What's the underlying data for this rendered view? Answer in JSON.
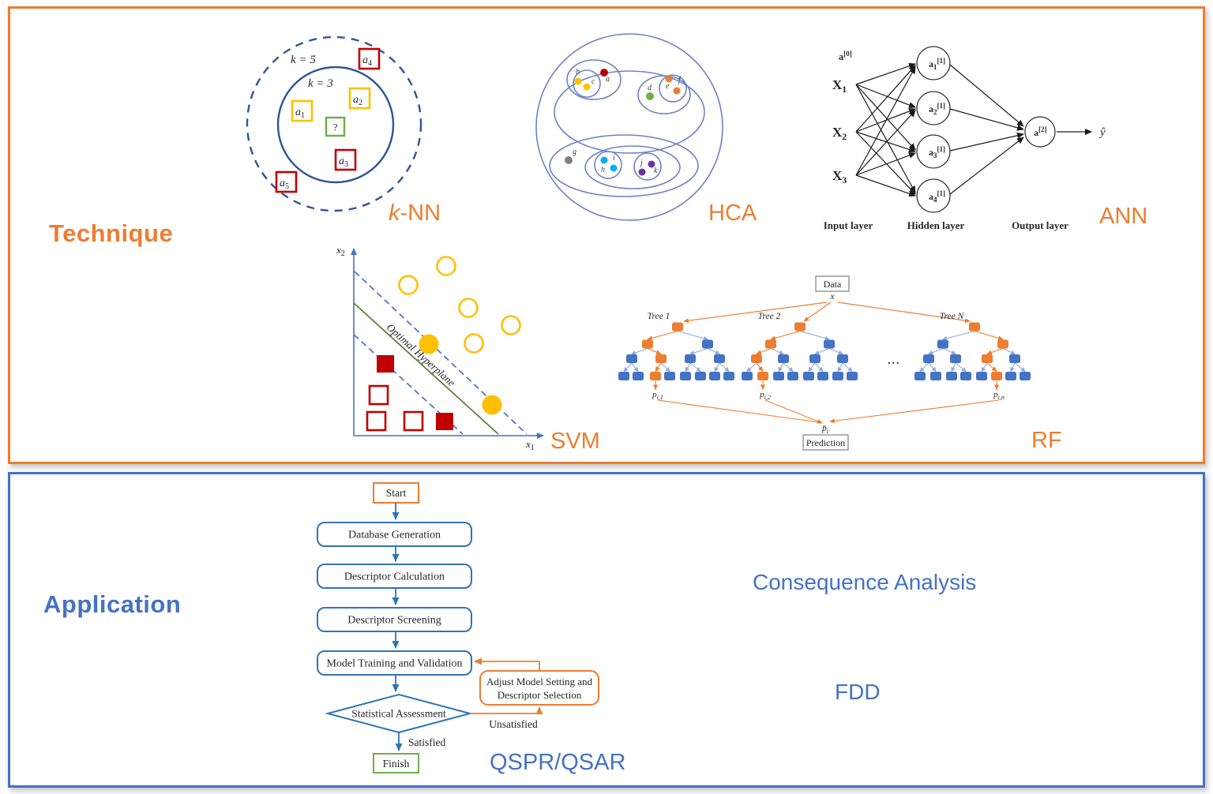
{
  "palette": {
    "orange": "#ED7D31",
    "panel_blue": "#4472C4",
    "flow_blue": "#2E75B6",
    "knn_circle_blue": "#2F5597",
    "hca_blue": "#6B83C4",
    "tree_edge_blue": "#8FAADC",
    "yellow": "#FFC000",
    "red": "#C00000",
    "green": "#70AD47",
    "svm_line_green": "#538135",
    "gray": "#7F7F7F",
    "light_blue": "#00B0F0",
    "purple": "#7030A0"
  },
  "technique": {
    "title": "Technique",
    "knn": {
      "label_k": "k",
      "label_suffix": "-NN",
      "k5": "k = 5",
      "k3": "k = 3",
      "sq_a1": {
        "base": "a",
        "sub": "1"
      },
      "sq_a2": {
        "base": "a",
        "sub": "2"
      },
      "sq_a3": {
        "base": "a",
        "sub": "3"
      },
      "sq_a4": {
        "base": "a",
        "sub": "4"
      },
      "sq_a5": {
        "base": "a",
        "sub": "5"
      },
      "query": "?"
    },
    "hca": {
      "label": "HCA",
      "a": "a",
      "b": "b",
      "c": "c",
      "d": "d",
      "e": "e",
      "f": "f",
      "g": "g",
      "h": "h",
      "i": "i",
      "j": "j",
      "k": "k"
    },
    "ann": {
      "label": "ANN",
      "a0": {
        "base": "a",
        "sup": "[0]"
      },
      "x1": {
        "base": "X",
        "sub": "1"
      },
      "x2": {
        "base": "X",
        "sub": "2"
      },
      "x3": {
        "base": "X",
        "sub": "3"
      },
      "h1": {
        "base": "a",
        "sub": "1",
        "sup": "[1]"
      },
      "h2": {
        "base": "a",
        "sub": "2",
        "sup": "[1]"
      },
      "h3": {
        "base": "a",
        "sub": "3",
        "sup": "[1]"
      },
      "h4": {
        "base": "a",
        "sub": "4",
        "sup": "[1]"
      },
      "out": {
        "base": "a",
        "sup": "[2]"
      },
      "yhat": "ŷ",
      "input_layer": "Input layer",
      "hidden_layer": "Hidden layer",
      "output_layer": "Output layer"
    },
    "svm": {
      "label": "SVM",
      "x1": {
        "base": "x",
        "sub": "1"
      },
      "x2": {
        "base": "x",
        "sub": "2"
      },
      "hyperplane": "Optimal Hyperplane"
    },
    "rf": {
      "label": "RF",
      "data_box": "Data",
      "x": "x",
      "tree1": "Tree 1",
      "tree2": "Tree 2",
      "treeN": "Tree N",
      "dots": "...",
      "p1": {
        "base": "p",
        "sub": "i,1"
      },
      "p2": {
        "base": "p",
        "sub": "i,2"
      },
      "pn": {
        "base": "p",
        "sub": "i,n"
      },
      "pbar": {
        "base": "p̄",
        "sub": "i"
      },
      "prediction_box": "Prediction",
      "tree_patterns": [
        {
          "root": "O",
          "l2": [
            "O",
            "B"
          ],
          "l3": [
            "B",
            "O",
            "B",
            "B"
          ],
          "leaves": [
            "B",
            "B",
            "O",
            "B",
            "B",
            "B",
            "B",
            "B"
          ],
          "p_leaf": 2
        },
        {
          "root": "O",
          "l2": [
            "O",
            "B"
          ],
          "l3": [
            "O",
            "B",
            "B",
            "B"
          ],
          "leaves": [
            "B",
            "O",
            "B",
            "B",
            "B",
            "B",
            "B",
            "B"
          ],
          "p_leaf": 1
        },
        {
          "root": "O",
          "l2": [
            "B",
            "O"
          ],
          "l3": [
            "B",
            "B",
            "O",
            "B"
          ],
          "leaves": [
            "B",
            "B",
            "B",
            "B",
            "B",
            "O",
            "B",
            "B"
          ],
          "p_leaf": 5
        }
      ]
    }
  },
  "application": {
    "title": "Application",
    "flowchart": {
      "start": "Start",
      "step1": "Database Generation",
      "step2": "Descriptor Calculation",
      "step3": "Descriptor Screening",
      "step4": "Model Training and Validation",
      "decision": "Statistical Assessment",
      "adjust1": "Adjust Model Setting and",
      "adjust2": "Descriptor Selection",
      "unsatisfied": "Unsatisfied",
      "satisfied": "Satisfied",
      "finish": "Finish"
    },
    "qspr": "QSPR/QSAR",
    "consequence": "Consequence Analysis",
    "fdd": "FDD"
  }
}
